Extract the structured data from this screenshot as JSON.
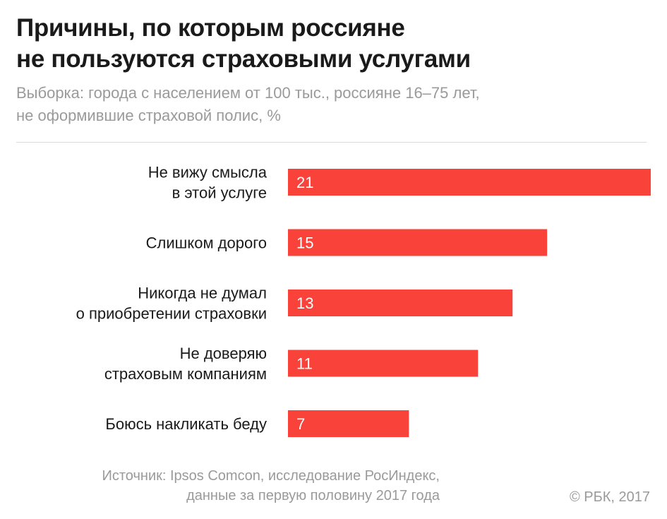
{
  "title_lines": [
    "Причины, по которым россияне",
    "не пользуются страховыми услугами"
  ],
  "subtitle_lines": [
    "Выборка: города с населением от 100 тыс., россияне 16–75 лет,",
    "не оформившие страховой полис, %"
  ],
  "chart_data": {
    "type": "bar",
    "orientation": "horizontal",
    "categories": [
      [
        "Не вижу смысла",
        "в этой услуге"
      ],
      [
        "Слишком дорого"
      ],
      [
        "Никогда не думал",
        "о приобретении страховки"
      ],
      [
        "Не доверяю",
        "страховым компаниям"
      ],
      [
        "Боюсь накликать беду"
      ]
    ],
    "values": [
      21,
      15,
      13,
      11,
      7
    ],
    "value_labels": [
      "21",
      "15",
      "13",
      "11",
      "7"
    ],
    "bar_color": "#f9423a",
    "label_color": "#ffffff"
  },
  "footer": {
    "source_lines": [
      "Источник: Ipsos Comcon, исследование РосИндекс,",
      "данные за первую половину 2017 года"
    ],
    "copyright": "© РБК, 2017"
  }
}
